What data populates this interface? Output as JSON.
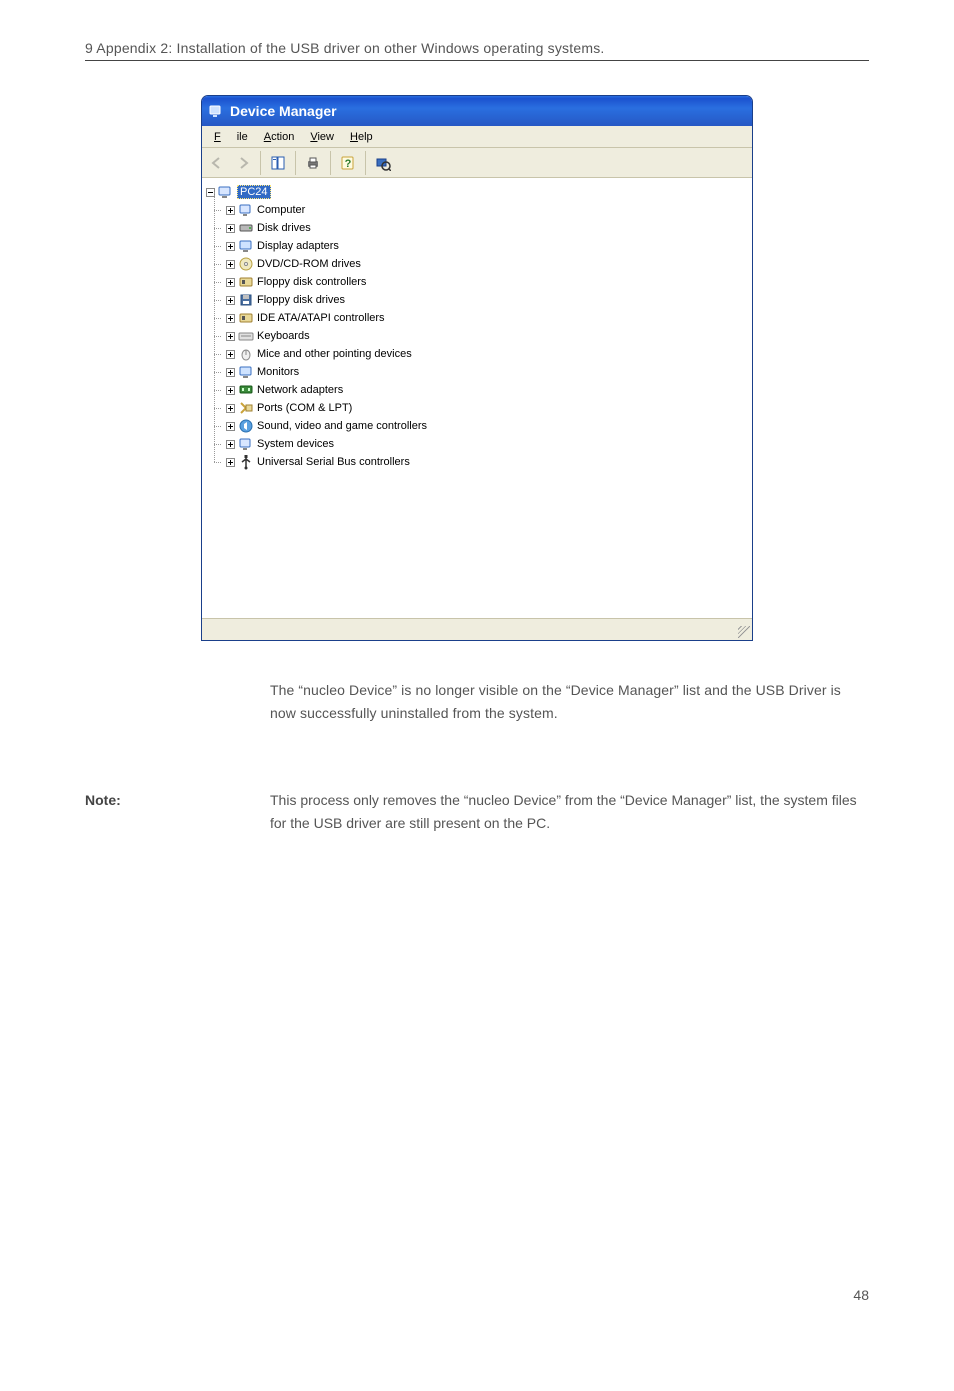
{
  "header": "9 Appendix 2: Installation of the USB driver on other Windows operating systems.",
  "window": {
    "title": "Device Manager",
    "titlebar_gradient": [
      "#2a6fe0",
      "#1b52cf"
    ],
    "menu": {
      "file": "File",
      "action": "Action",
      "view": "View",
      "help": "Help"
    },
    "tree_root": "PC24",
    "tree_items": [
      {
        "label": "Computer",
        "icon": "computer"
      },
      {
        "label": "Disk drives",
        "icon": "disk"
      },
      {
        "label": "Display adapters",
        "icon": "display"
      },
      {
        "label": "DVD/CD-ROM drives",
        "icon": "cd"
      },
      {
        "label": "Floppy disk controllers",
        "icon": "ctrl"
      },
      {
        "label": "Floppy disk drives",
        "icon": "floppy"
      },
      {
        "label": "IDE ATA/ATAPI controllers",
        "icon": "ctrl"
      },
      {
        "label": "Keyboards",
        "icon": "keyboard"
      },
      {
        "label": "Mice and other pointing devices",
        "icon": "mouse"
      },
      {
        "label": "Monitors",
        "icon": "monitor"
      },
      {
        "label": "Network adapters",
        "icon": "network"
      },
      {
        "label": "Ports (COM & LPT)",
        "icon": "port"
      },
      {
        "label": "Sound, video and game controllers",
        "icon": "sound"
      },
      {
        "label": "System devices",
        "icon": "system"
      },
      {
        "label": "Universal Serial Bus controllers",
        "icon": "usb"
      }
    ]
  },
  "body1": "The “nucleo Device” is no longer visible on the “Device Manager” list and the USB Driver is now successfully uninstalled from the system.",
  "note_label": "Note:",
  "note_body": "This process only removes the “nucleo Device” from the “Device Manager” list, the system files for the USB driver are still present on the PC.",
  "page_num": "48",
  "colors": {
    "page_bg": "#ffffff",
    "text": "#555555",
    "rule": "#444444",
    "xp_menu_bg": "#efedde",
    "xp_selection": "#316ac5",
    "dotted_tree": "#999999"
  }
}
